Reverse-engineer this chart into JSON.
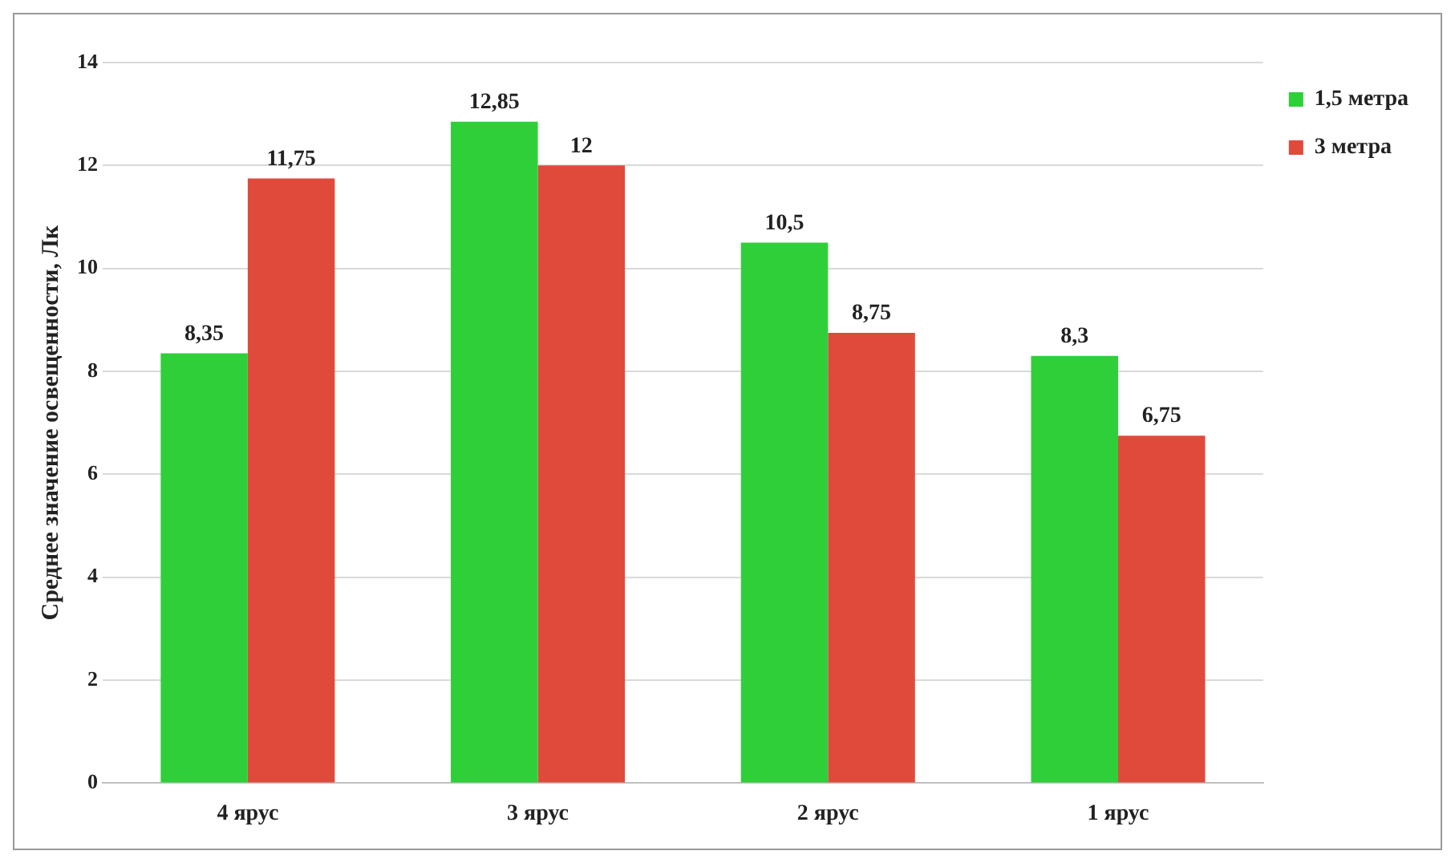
{
  "chart_data": {
    "type": "bar",
    "ylabel": "Среднее значение освещенности, Лк",
    "categories": [
      "4 ярус",
      "3 ярус",
      "2 ярус",
      "1 ярус"
    ],
    "series": [
      {
        "name": "1,5 метра",
        "color": "#2fcf3a",
        "values": [
          8.35,
          12.85,
          10.5,
          8.3
        ],
        "value_labels": [
          "8,35",
          "12,85",
          "10,5",
          "8,3"
        ]
      },
      {
        "name": "3 метра",
        "color": "#e04a3a",
        "values": [
          11.75,
          12,
          8.75,
          6.75
        ],
        "value_labels": [
          "11,75",
          "12",
          "8,75",
          "6,75"
        ]
      }
    ],
    "ylim": [
      0,
      14
    ],
    "yticks": [
      0,
      2,
      4,
      6,
      8,
      10,
      12,
      14
    ],
    "grid": "y",
    "legend": "top right"
  }
}
